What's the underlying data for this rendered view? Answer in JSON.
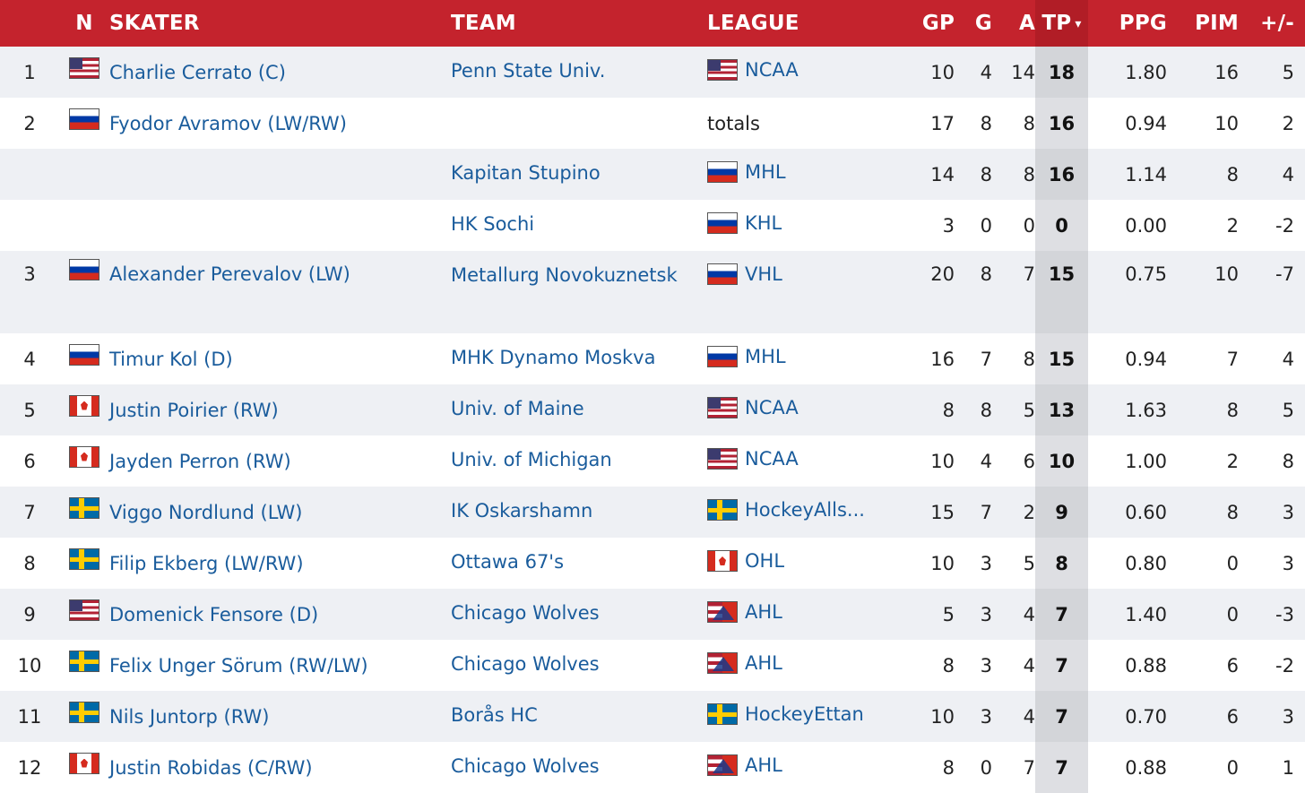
{
  "headers": {
    "rank": "",
    "n": "N",
    "skater": "SKATER",
    "team": "TEAM",
    "league": "LEAGUE",
    "gp": "GP",
    "g": "G",
    "a": "A",
    "tp": "TP",
    "tp_sort_glyph": "▾",
    "ppg": "PPG",
    "pim": "PIM",
    "pm": "+/-"
  },
  "icons": {
    "tp_sort": "sort-descending-icon",
    "flags": {
      "us": "usa-flag-icon",
      "ru": "russia-flag-icon",
      "ca": "canada-flag-icon",
      "se": "sweden-flag-icon",
      "ahl": "ahl-logo-icon"
    }
  },
  "colors": {
    "header_bg": "#c4232d",
    "link": "#1a5c9c",
    "row_alt": "#eef0f4",
    "tp_column": "#dedfe3"
  },
  "rows": [
    {
      "rank": "1",
      "flag": "us",
      "skater": "Charlie Cerrato (C)",
      "team": "Penn State Univ.",
      "league_flag": "us",
      "league": "NCAA",
      "league_link": true,
      "gp": "10",
      "g": "4",
      "a": "14",
      "tp": "18",
      "ppg": "1.80",
      "pim": "16",
      "pm": "5"
    },
    {
      "rank": "2",
      "flag": "ru",
      "skater": "Fyodor Avramov (LW/RW)",
      "team": "",
      "league_flag": "",
      "league": "totals",
      "league_link": false,
      "gp": "17",
      "g": "8",
      "a": "8",
      "tp": "16",
      "ppg": "0.94",
      "pim": "10",
      "pm": "2"
    },
    {
      "rank": "",
      "flag": "",
      "skater": "",
      "team": "Kapitan Stupino",
      "league_flag": "ru",
      "league": "MHL",
      "league_link": true,
      "gp": "14",
      "g": "8",
      "a": "8",
      "tp": "16",
      "ppg": "1.14",
      "pim": "8",
      "pm": "4"
    },
    {
      "rank": "",
      "flag": "",
      "skater": "",
      "team": "HK Sochi",
      "league_flag": "ru",
      "league": "KHL",
      "league_link": true,
      "gp": "3",
      "g": "0",
      "a": "0",
      "tp": "0",
      "ppg": "0.00",
      "pim": "2",
      "pm": "-2"
    },
    {
      "rank": "3",
      "flag": "ru",
      "skater": "Alexander Perevalov (LW)",
      "team": "Metallurg Novokuznetsk",
      "league_flag": "ru",
      "league": "VHL",
      "league_link": true,
      "gp": "20",
      "g": "8",
      "a": "7",
      "tp": "15",
      "ppg": "0.75",
      "pim": "10",
      "pm": "-7",
      "tall": true
    },
    {
      "rank": "4",
      "flag": "ru",
      "skater": "Timur Kol (D)",
      "team": "MHK Dynamo Moskva",
      "league_flag": "ru",
      "league": "MHL",
      "league_link": true,
      "gp": "16",
      "g": "7",
      "a": "8",
      "tp": "15",
      "ppg": "0.94",
      "pim": "7",
      "pm": "4"
    },
    {
      "rank": "5",
      "flag": "ca",
      "skater": "Justin Poirier (RW)",
      "team": "Univ. of Maine",
      "league_flag": "us",
      "league": "NCAA",
      "league_link": true,
      "gp": "8",
      "g": "8",
      "a": "5",
      "tp": "13",
      "ppg": "1.63",
      "pim": "8",
      "pm": "5"
    },
    {
      "rank": "6",
      "flag": "ca",
      "skater": "Jayden Perron (RW)",
      "team": "Univ. of Michigan",
      "league_flag": "us",
      "league": "NCAA",
      "league_link": true,
      "gp": "10",
      "g": "4",
      "a": "6",
      "tp": "10",
      "ppg": "1.00",
      "pim": "2",
      "pm": "8"
    },
    {
      "rank": "7",
      "flag": "se",
      "skater": "Viggo Nordlund (LW)",
      "team": "IK Oskarshamn",
      "league_flag": "se",
      "league": "HockeyAlls...",
      "league_link": true,
      "gp": "15",
      "g": "7",
      "a": "2",
      "tp": "9",
      "ppg": "0.60",
      "pim": "8",
      "pm": "3"
    },
    {
      "rank": "8",
      "flag": "se",
      "skater": "Filip Ekberg (LW/RW)",
      "team": "Ottawa 67's",
      "league_flag": "ca",
      "league": "OHL",
      "league_link": true,
      "gp": "10",
      "g": "3",
      "a": "5",
      "tp": "8",
      "ppg": "0.80",
      "pim": "0",
      "pm": "3"
    },
    {
      "rank": "9",
      "flag": "us",
      "skater": "Domenick Fensore (D)",
      "team": "Chicago Wolves",
      "league_flag": "ahl",
      "league": "AHL",
      "league_link": true,
      "gp": "5",
      "g": "3",
      "a": "4",
      "tp": "7",
      "ppg": "1.40",
      "pim": "0",
      "pm": "-3"
    },
    {
      "rank": "10",
      "flag": "se",
      "skater": "Felix Unger Sörum (RW/LW)",
      "team": "Chicago Wolves",
      "league_flag": "ahl",
      "league": "AHL",
      "league_link": true,
      "gp": "8",
      "g": "3",
      "a": "4",
      "tp": "7",
      "ppg": "0.88",
      "pim": "6",
      "pm": "-2"
    },
    {
      "rank": "11",
      "flag": "se",
      "skater": "Nils Juntorp (RW)",
      "team": "Borås HC",
      "league_flag": "se",
      "league": "HockeyEttan",
      "league_link": true,
      "gp": "10",
      "g": "3",
      "a": "4",
      "tp": "7",
      "ppg": "0.70",
      "pim": "6",
      "pm": "3"
    },
    {
      "rank": "12",
      "flag": "ca",
      "skater": "Justin Robidas (C/RW)",
      "team": "Chicago Wolves",
      "league_flag": "ahl",
      "league": "AHL",
      "league_link": true,
      "gp": "8",
      "g": "0",
      "a": "7",
      "tp": "7",
      "ppg": "0.88",
      "pim": "0",
      "pm": "1"
    }
  ]
}
